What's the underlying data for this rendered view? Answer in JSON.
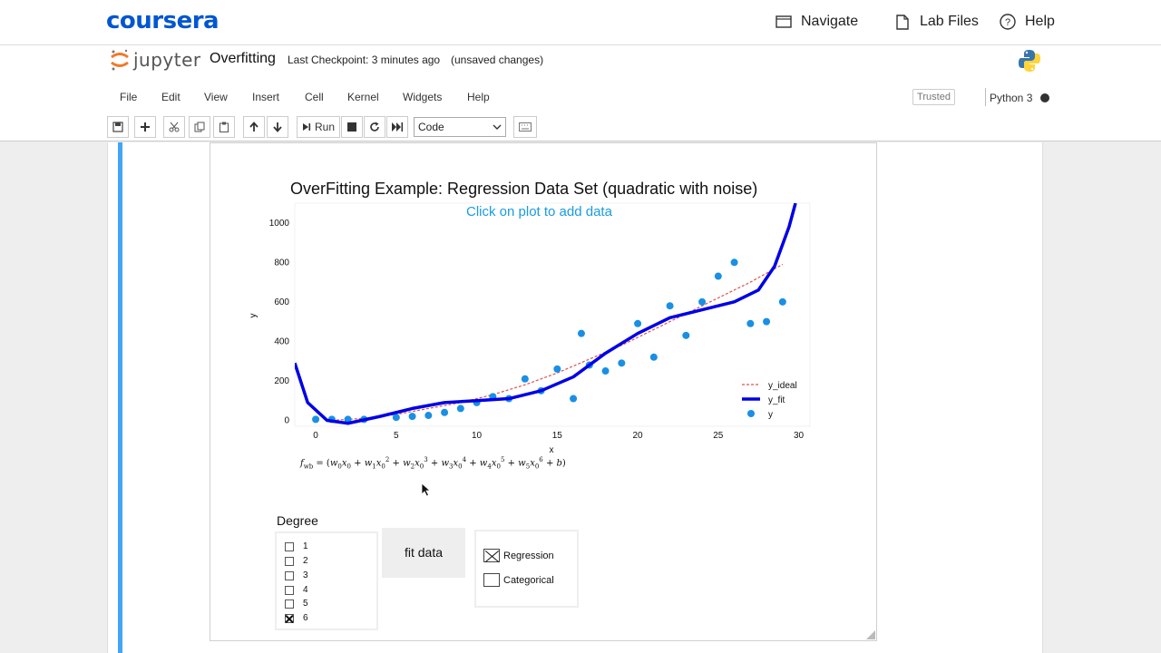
{
  "coursera": {
    "logo": "coursera",
    "nav": [
      {
        "label": "Navigate",
        "icon": "navigate-icon"
      },
      {
        "label": "Lab Files",
        "icon": "file-icon"
      },
      {
        "label": "Help",
        "icon": "help-icon"
      }
    ]
  },
  "jupyter": {
    "logo_text": "jupyter",
    "notebook_name": "Overfitting",
    "checkpoint": "Last Checkpoint: 3 minutes ago",
    "unsaved": "(unsaved changes)",
    "menu": [
      "File",
      "Edit",
      "View",
      "Insert",
      "Cell",
      "Kernel",
      "Widgets",
      "Help"
    ],
    "trusted": "Trusted",
    "kernel": "Python 3",
    "toolbar": {
      "run_label": "Run",
      "cell_type": "Code"
    }
  },
  "plot": {
    "title": "OverFitting Example: Regression Data Set (quadratic with noise)",
    "hint": "Click on plot to add data",
    "xlabel": "x",
    "ylabel": "y",
    "legend": [
      "y_ideal",
      "y_fit",
      "y"
    ],
    "equation": "f_wb = (w0x0 + w1x0^2 + w2x0^3 + w3x0^4 + w4x0^5 + w5x0^6 + b)"
  },
  "controls": {
    "degree_label": "Degree",
    "degrees": [
      {
        "label": "1",
        "checked": false
      },
      {
        "label": "2",
        "checked": false
      },
      {
        "label": "3",
        "checked": false
      },
      {
        "label": "4",
        "checked": false
      },
      {
        "label": "5",
        "checked": false
      },
      {
        "label": "6",
        "checked": true
      }
    ],
    "fit_button": "fit data",
    "modes": [
      {
        "label": "Regression",
        "checked": true
      },
      {
        "label": "Categorical",
        "checked": false
      }
    ]
  },
  "chart_data": {
    "type": "scatter",
    "title": "OverFitting Example: Regression Data Set (quadratic with noise)",
    "xlabel": "x",
    "ylabel": "y",
    "xlim": [
      -1.3,
      30.7
    ],
    "ylim": [
      -30,
      1100
    ],
    "xticks": [
      0,
      5,
      10,
      15,
      20,
      25,
      30
    ],
    "yticks": [
      0,
      200,
      400,
      600,
      800,
      1000
    ],
    "legend_position": "lower-right",
    "colors": {
      "y_ideal": "#d9534f",
      "y_fit": "#0000e6",
      "y": "#1a8fe3"
    },
    "series": [
      {
        "name": "y",
        "kind": "scatter",
        "x": [
          0,
          1,
          2,
          3,
          5,
          6,
          7,
          8,
          9,
          10,
          11,
          12,
          13,
          14,
          15,
          16,
          16.5,
          17,
          18,
          19,
          20,
          21,
          22,
          23,
          24,
          25,
          26,
          27,
          28,
          29
        ],
        "y": [
          5,
          5,
          5,
          5,
          15,
          20,
          25,
          40,
          60,
          90,
          120,
          110,
          210,
          150,
          260,
          110,
          440,
          280,
          250,
          290,
          490,
          320,
          580,
          430,
          600,
          730,
          800,
          490,
          500,
          600
        ]
      },
      {
        "name": "y_fit",
        "kind": "line",
        "x": [
          -1.3,
          -0.5,
          0.7,
          2,
          4,
          6,
          8,
          10,
          12,
          14,
          16,
          18,
          20,
          22,
          24,
          26,
          27.5,
          28.5,
          29.4,
          29.8
        ],
        "y": [
          290,
          90,
          0,
          -15,
          20,
          60,
          90,
          100,
          110,
          150,
          220,
          340,
          440,
          520,
          560,
          600,
          660,
          780,
          980,
          1100
        ]
      },
      {
        "name": "y_ideal",
        "kind": "line",
        "x": [
          1,
          3,
          5,
          7,
          9,
          11,
          13,
          15,
          17,
          19,
          21,
          23,
          25,
          27,
          29
        ],
        "y": [
          0,
          10,
          30,
          60,
          90,
          130,
          180,
          240,
          310,
          380,
          460,
          540,
          620,
          700,
          790
        ]
      }
    ]
  }
}
